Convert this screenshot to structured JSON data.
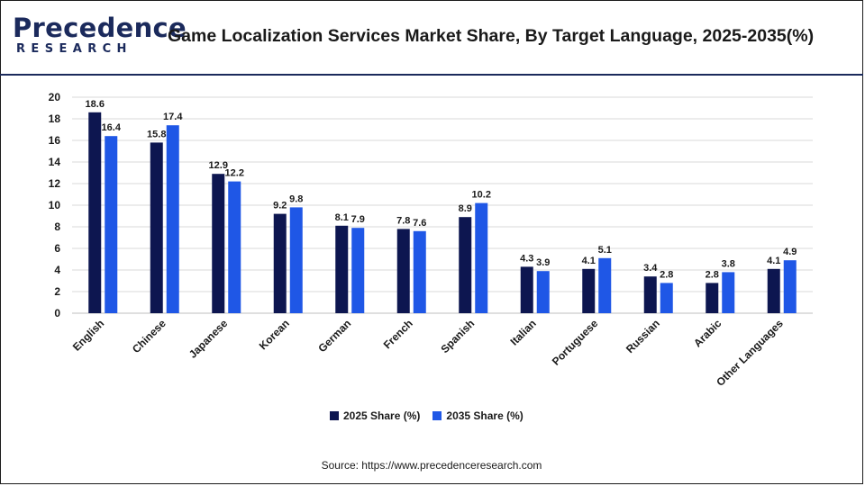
{
  "header": {
    "logo_word": "Precedence",
    "logo_sub": "RESEARCH",
    "title": "Game Localization Services Market Share, By Target Language, 2025-2035(%)"
  },
  "footer": {
    "source": "Source: https://www.precedenceresearch.com"
  },
  "colors": {
    "series_2025": "#0d1650",
    "series_2035": "#1f57e6",
    "brand": "#1b2a5c",
    "grid": "#d9d9d9"
  },
  "chart_data": {
    "type": "bar",
    "categories": [
      "English",
      "Chinese",
      "Japanese",
      "Korean",
      "German",
      "French",
      "Spanish",
      "Italian",
      "Portuguese",
      "Russian",
      "Arabic",
      "Other Languages"
    ],
    "series": [
      {
        "name": "2025 Share (%)",
        "values": [
          18.6,
          15.8,
          12.9,
          9.2,
          8.1,
          7.8,
          8.9,
          4.3,
          4.1,
          3.4,
          2.8,
          4.1
        ]
      },
      {
        "name": "2035 Share (%)",
        "values": [
          16.4,
          17.4,
          12.2,
          9.8,
          7.9,
          7.6,
          10.2,
          3.9,
          5.1,
          2.8,
          3.8,
          4.9
        ]
      }
    ],
    "y_ticks": [
      "0",
      "2",
      "4",
      "6",
      "8",
      "10",
      "12",
      "14",
      "16",
      "18",
      "20"
    ],
    "ylim": [
      0,
      20
    ],
    "grid": true,
    "legend": "bottom-center",
    "xlabel": "",
    "ylabel": ""
  }
}
